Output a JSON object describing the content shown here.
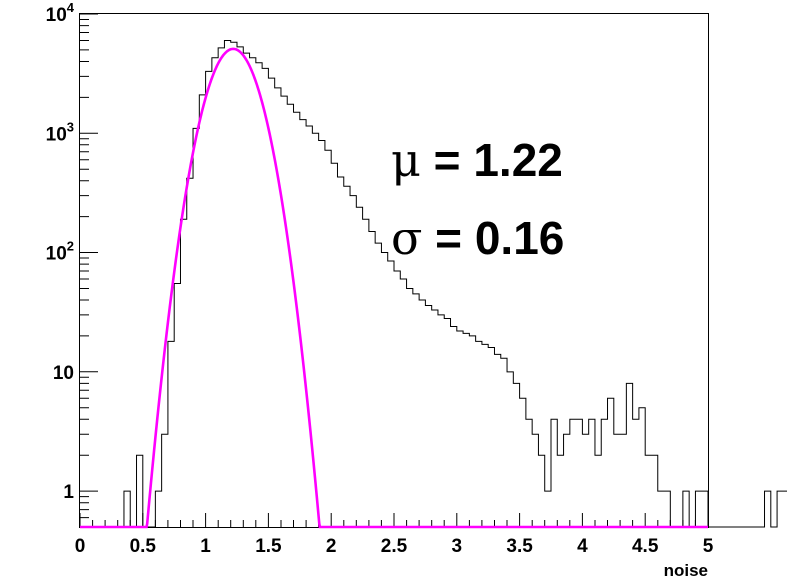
{
  "chart_data": {
    "type": "histogram",
    "title": "",
    "xlabel": "noise",
    "ylabel": "",
    "xlim": [
      0,
      5
    ],
    "ylim": [
      0.5,
      10000
    ],
    "y_scale": "log",
    "bin_width": 0.05,
    "x_ticks": [
      {
        "value": 0,
        "label": "0"
      },
      {
        "value": 0.5,
        "label": "0.5"
      },
      {
        "value": 1,
        "label": "1"
      },
      {
        "value": 1.5,
        "label": "1.5"
      },
      {
        "value": 2,
        "label": "2"
      },
      {
        "value": 2.5,
        "label": "2.5"
      },
      {
        "value": 3,
        "label": "3"
      },
      {
        "value": 3.5,
        "label": "3.5"
      },
      {
        "value": 4,
        "label": "4"
      },
      {
        "value": 4.5,
        "label": "4.5"
      },
      {
        "value": 5,
        "label": "5"
      }
    ],
    "y_ticks": [
      {
        "value": 1,
        "base": "1",
        "exp": ""
      },
      {
        "value": 10,
        "base": "10",
        "exp": ""
      },
      {
        "value": 100,
        "base": "10",
        "exp": "2"
      },
      {
        "value": 1000,
        "base": "10",
        "exp": "3"
      },
      {
        "value": 10000,
        "base": "10",
        "exp": "4"
      }
    ],
    "series": [
      {
        "kind": "histogram",
        "color": "#000000",
        "bin_edges_start": 0,
        "values": [
          0,
          0,
          0,
          0,
          0,
          0,
          0,
          1,
          0,
          2,
          0,
          0,
          1,
          3,
          18,
          55,
          190,
          420,
          1100,
          2100,
          3300,
          4300,
          5200,
          6000,
          5800,
          5300,
          4700,
          4300,
          3900,
          3500,
          2900,
          2400,
          2050,
          1750,
          1500,
          1300,
          1150,
          1000,
          870,
          720,
          560,
          430,
          360,
          300,
          240,
          190,
          150,
          120,
          100,
          85,
          70,
          60,
          50,
          45,
          40,
          36,
          33,
          30,
          28,
          24,
          22,
          21,
          20,
          18,
          17,
          16,
          14,
          13,
          10,
          8,
          6,
          4,
          3,
          2,
          1,
          4,
          2,
          3,
          4,
          4,
          3,
          4,
          2,
          4,
          6,
          3,
          3,
          8,
          4,
          5,
          2,
          2,
          1,
          1,
          0,
          0,
          1,
          0,
          1,
          1,
          0,
          0,
          0,
          0,
          0,
          0,
          0,
          0,
          0,
          1,
          0,
          1,
          1,
          1,
          1,
          1,
          0,
          0,
          0,
          0,
          0,
          0,
          0,
          0
        ]
      },
      {
        "kind": "gaussian-fit",
        "color": "#ff00ff",
        "amplitude": 5100,
        "mean": 1.22,
        "sigma": 0.16,
        "x_range": [
          0.5,
          1.94
        ]
      }
    ],
    "annotations": [
      {
        "symbol": "μ",
        "text": " = 1.22"
      },
      {
        "symbol": "σ",
        "text": " = 0.16"
      }
    ],
    "grid": false,
    "legend": "none"
  }
}
